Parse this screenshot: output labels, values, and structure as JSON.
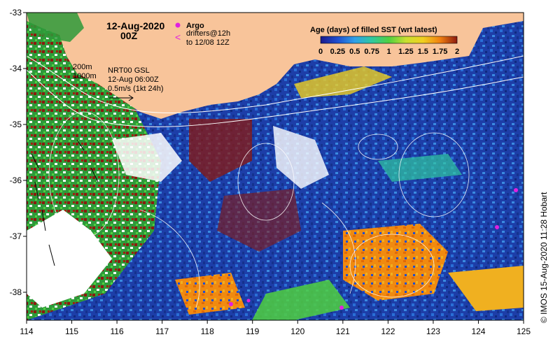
{
  "map": {
    "date": "12-Aug-2020",
    "hour": "00Z",
    "argo_label": "Argo",
    "drifters_line1": "drifters@12h",
    "drifters_line2": "to 12/08 12Z",
    "isobath_200": "200m",
    "isobath_1000": "1000m",
    "gsl_line1": "NRT00 GSL",
    "gsl_line2": "12-Aug 06:00Z",
    "scale_label": "0.5m/s (1kt 24h)",
    "colorbar_title": "Age (days) of filled SST (wrt latest)",
    "colorbar_ticks": [
      "0",
      "0.25",
      "0.5",
      "0.75",
      "1",
      "1.25",
      "1.5",
      "1.75",
      "2"
    ],
    "colorbar_stops": [
      "#1a1a8c",
      "#1f4fd0",
      "#2fa0e8",
      "#30c8a0",
      "#50d040",
      "#c8e030",
      "#f0d020",
      "#f08010",
      "#8b1a10"
    ],
    "credit": "© IMOS 15-Aug-2020 11:28 Hobart",
    "x_ticks": [
      "114",
      "115",
      "116",
      "117",
      "118",
      "119",
      "120",
      "121",
      "122",
      "123",
      "124",
      "125"
    ],
    "y_ticks": [
      "-33",
      "-34",
      "-35",
      "-36",
      "-37",
      "-38"
    ],
    "colors": {
      "land": "#f8c49a",
      "ocean_deep": "#1d3ea8",
      "ocean_mid": "#2a6fd6",
      "argo": "#e020e0"
    }
  }
}
